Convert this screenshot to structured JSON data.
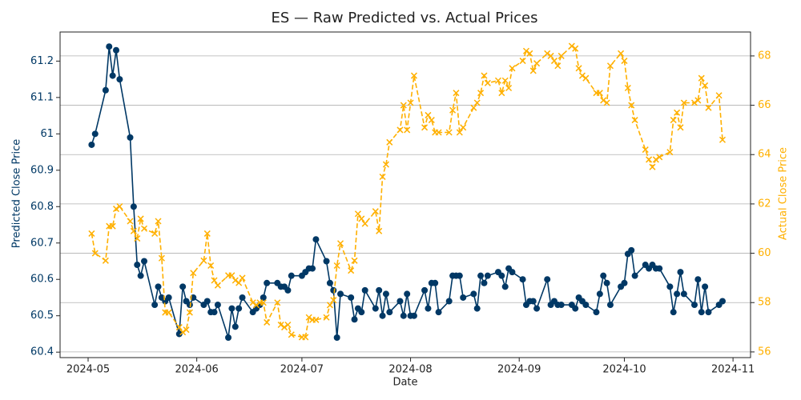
{
  "chart_data": {
    "type": "line",
    "title": "ES — Raw Predicted vs. Actual Prices",
    "xlabel": "Date",
    "ylabel": "Predicted Close Price",
    "y2label": "Actual Close Price",
    "x": [
      "2024-05-02",
      "2024-05-03",
      "2024-05-06",
      "2024-05-07",
      "2024-05-08",
      "2024-05-09",
      "2024-05-10",
      "2024-05-13",
      "2024-05-14",
      "2024-05-15",
      "2024-05-16",
      "2024-05-17",
      "2024-05-20",
      "2024-05-21",
      "2024-05-22",
      "2024-05-23",
      "2024-05-24",
      "2024-05-27",
      "2024-05-28",
      "2024-05-29",
      "2024-05-30",
      "2024-05-31",
      "2024-06-03",
      "2024-06-04",
      "2024-06-05",
      "2024-06-06",
      "2024-06-07",
      "2024-06-10",
      "2024-06-11",
      "2024-06-12",
      "2024-06-13",
      "2024-06-14",
      "2024-06-17",
      "2024-06-18",
      "2024-06-19",
      "2024-06-20",
      "2024-06-21",
      "2024-06-24",
      "2024-06-25",
      "2024-06-26",
      "2024-06-27",
      "2024-06-28",
      "2024-07-01",
      "2024-07-02",
      "2024-07-03",
      "2024-07-04",
      "2024-07-05",
      "2024-07-08",
      "2024-07-09",
      "2024-07-10",
      "2024-07-11",
      "2024-07-12",
      "2024-07-15",
      "2024-07-16",
      "2024-07-17",
      "2024-07-18",
      "2024-07-19",
      "2024-07-22",
      "2024-07-23",
      "2024-07-24",
      "2024-07-25",
      "2024-07-26",
      "2024-07-29",
      "2024-07-30",
      "2024-07-31",
      "2024-08-01",
      "2024-08-02",
      "2024-08-05",
      "2024-08-06",
      "2024-08-07",
      "2024-08-08",
      "2024-08-09",
      "2024-08-12",
      "2024-08-13",
      "2024-08-14",
      "2024-08-15",
      "2024-08-16",
      "2024-08-19",
      "2024-08-20",
      "2024-08-21",
      "2024-08-22",
      "2024-08-23",
      "2024-08-26",
      "2024-08-27",
      "2024-08-28",
      "2024-08-29",
      "2024-08-30",
      "2024-09-02",
      "2024-09-03",
      "2024-09-04",
      "2024-09-05",
      "2024-09-06",
      "2024-09-09",
      "2024-09-10",
      "2024-09-11",
      "2024-09-12",
      "2024-09-13",
      "2024-09-16",
      "2024-09-17",
      "2024-09-18",
      "2024-09-19",
      "2024-09-20",
      "2024-09-23",
      "2024-09-24",
      "2024-09-25",
      "2024-09-26",
      "2024-09-27",
      "2024-09-30",
      "2024-10-01",
      "2024-10-02",
      "2024-10-03",
      "2024-10-04",
      "2024-10-07",
      "2024-10-08",
      "2024-10-09",
      "2024-10-10",
      "2024-10-11",
      "2024-10-14",
      "2024-10-15",
      "2024-10-16",
      "2024-10-17",
      "2024-10-18",
      "2024-10-21",
      "2024-10-22",
      "2024-10-23",
      "2024-10-24",
      "2024-10-25",
      "2024-10-28",
      "2024-10-29"
    ],
    "series": [
      {
        "name": "Predicted",
        "color": "#003865",
        "axis": "y",
        "marker": "circle",
        "values": [
          60.97,
          61.0,
          61.12,
          61.24,
          61.16,
          61.23,
          61.15,
          60.99,
          60.8,
          60.64,
          60.61,
          60.65,
          60.53,
          60.58,
          60.55,
          60.54,
          60.55,
          60.45,
          60.58,
          60.54,
          60.53,
          60.55,
          60.53,
          60.54,
          60.51,
          60.51,
          60.53,
          60.44,
          60.52,
          60.47,
          60.52,
          60.55,
          60.51,
          60.52,
          60.53,
          60.55,
          60.59,
          60.59,
          60.58,
          60.58,
          60.57,
          60.61,
          60.61,
          60.62,
          60.63,
          60.63,
          60.71,
          60.65,
          60.59,
          60.57,
          60.44,
          60.56,
          60.55,
          60.49,
          60.52,
          60.51,
          60.57,
          60.52,
          60.57,
          60.5,
          60.56,
          60.51,
          60.54,
          60.5,
          60.56,
          60.5,
          60.5,
          60.57,
          60.52,
          60.59,
          60.59,
          60.51,
          60.54,
          60.61,
          60.61,
          60.61,
          60.55,
          60.56,
          60.52,
          60.61,
          60.59,
          60.61,
          60.62,
          60.61,
          60.58,
          60.63,
          60.62,
          60.6,
          60.53,
          60.54,
          60.54,
          60.52,
          60.6,
          60.53,
          60.54,
          60.53,
          60.53,
          60.53,
          60.52,
          60.55,
          60.54,
          60.53,
          60.51,
          60.56,
          60.61,
          60.59,
          60.53,
          60.58,
          60.59,
          60.67,
          60.68,
          60.61,
          60.64,
          60.63,
          60.64,
          60.63,
          60.63,
          60.58,
          60.51,
          60.56,
          60.62,
          60.56,
          60.53,
          60.6,
          60.51,
          60.58,
          60.51,
          60.53,
          60.54
        ]
      },
      {
        "name": "Actual",
        "color": "#ffb000",
        "axis": "y2",
        "marker": "x",
        "dashed": true,
        "values": [
          60.8,
          60.0,
          59.7,
          61.1,
          61.1,
          61.8,
          61.9,
          61.3,
          60.9,
          60.6,
          61.4,
          61.0,
          60.8,
          61.3,
          59.8,
          57.6,
          57.6,
          57.0,
          56.8,
          56.9,
          57.6,
          59.2,
          59.7,
          60.8,
          59.5,
          58.9,
          58.7,
          59.1,
          59.1,
          58.9,
          58.8,
          59.0,
          58.0,
          57.9,
          58.0,
          58.0,
          57.2,
          58.0,
          57.1,
          57.0,
          57.1,
          56.7,
          56.6,
          56.6,
          57.4,
          57.3,
          57.3,
          57.4,
          57.9,
          58.1,
          59.5,
          60.4,
          59.3,
          59.7,
          61.6,
          61.4,
          61.2,
          61.7,
          60.9,
          63.1,
          63.6,
          64.5,
          65.0,
          66.0,
          65.0,
          66.1,
          67.2,
          65.1,
          65.6,
          65.4,
          64.9,
          64.9,
          64.9,
          65.8,
          66.5,
          64.9,
          65.1,
          65.9,
          66.1,
          66.5,
          67.2,
          66.9,
          67.0,
          66.5,
          67.0,
          66.7,
          67.5,
          67.8,
          68.2,
          68.1,
          67.4,
          67.7,
          68.1,
          68.0,
          67.8,
          67.6,
          68.0,
          68.4,
          68.3,
          67.5,
          67.2,
          67.1,
          66.5,
          66.5,
          66.2,
          66.1,
          67.6,
          68.1,
          67.8,
          66.7,
          66.0,
          65.4,
          64.2,
          63.8,
          63.5,
          63.8,
          63.9,
          64.1,
          65.4,
          65.7,
          65.1,
          66.1,
          66.1,
          66.2,
          67.1,
          66.8,
          65.9,
          66.4,
          64.6
        ]
      }
    ],
    "xlim": [
      "2024-04-23",
      "2024-11-06"
    ],
    "xticks": [
      {
        "value": "2024-05-01",
        "label": "2024-05"
      },
      {
        "value": "2024-06-01",
        "label": "2024-06"
      },
      {
        "value": "2024-07-01",
        "label": "2024-07"
      },
      {
        "value": "2024-08-01",
        "label": "2024-08"
      },
      {
        "value": "2024-09-01",
        "label": "2024-09"
      },
      {
        "value": "2024-10-01",
        "label": "2024-10"
      },
      {
        "value": "2024-11-01",
        "label": "2024-11"
      }
    ],
    "ylim": [
      60.385,
      61.28
    ],
    "yticks": [
      60.4,
      60.5,
      60.6,
      60.7,
      60.8,
      60.9,
      61.0,
      61.1,
      61.2
    ],
    "y2lim": [
      55.77,
      68.97
    ],
    "y2ticks": [
      56,
      58,
      60,
      62,
      64,
      66,
      68
    ],
    "grid": "y2"
  }
}
